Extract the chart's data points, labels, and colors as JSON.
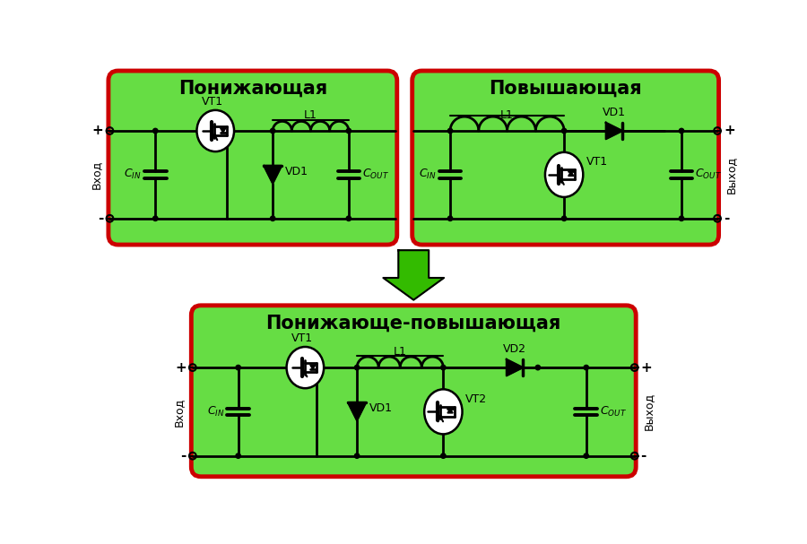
{
  "bg_color": "#ffffff",
  "green_fill": "#66dd44",
  "red_border": "#cc0000",
  "line_color": "#000000",
  "title1": "Понижающая",
  "title2": "Повышающая",
  "title3": "Понижающе-повышающая",
  "label_vhod": "Вход",
  "label_vyhod": "Выход",
  "arrow_color": "#33bb00",
  "figsize": [
    9.0,
    6.07
  ],
  "dpi": 100
}
